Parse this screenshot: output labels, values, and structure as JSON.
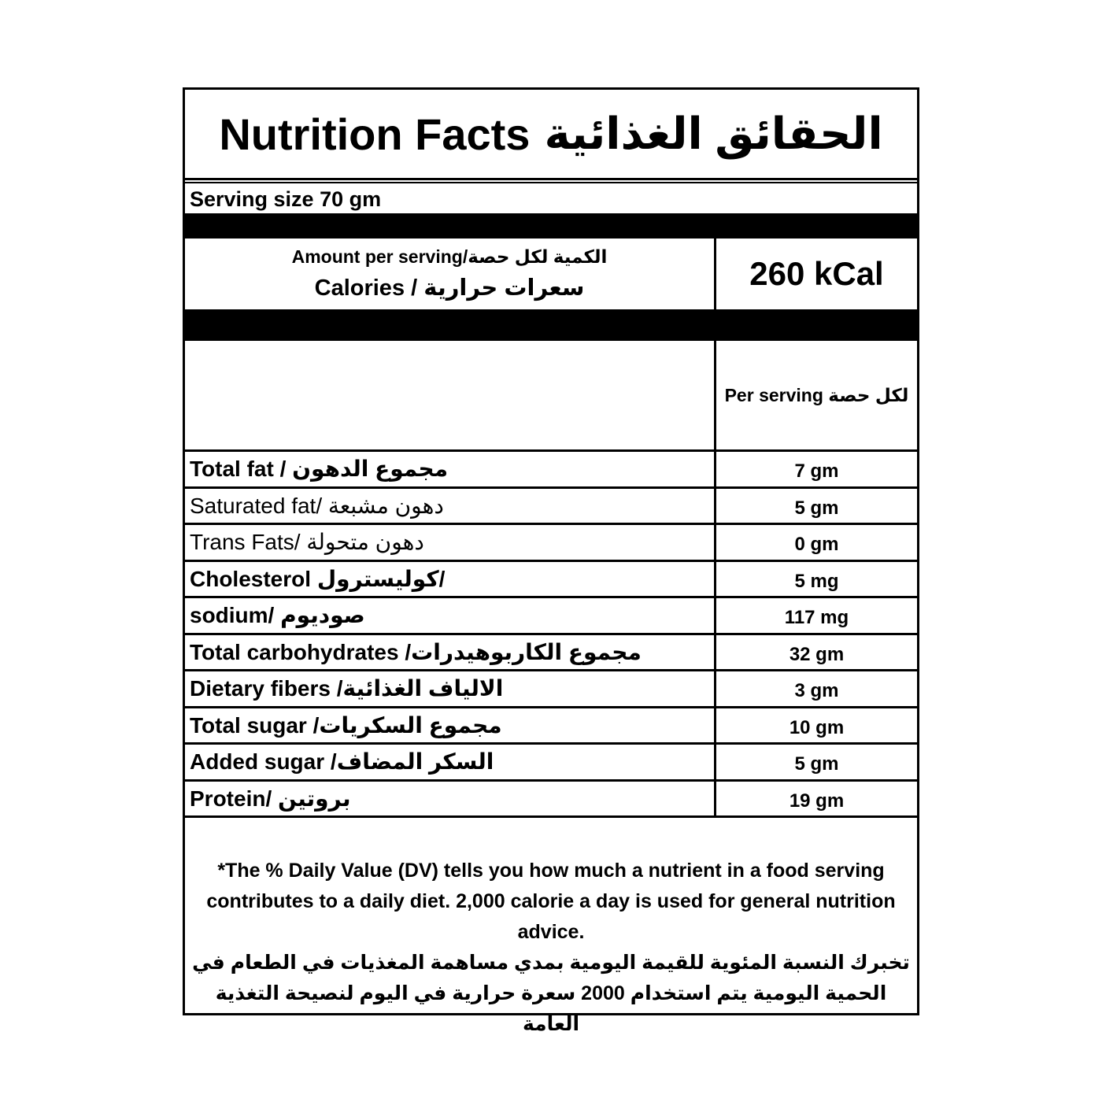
{
  "title": {
    "en": "Nutrition Facts",
    "ar": "الحقائق الغذائية"
  },
  "serving_size": "Serving size 70 gm",
  "amount": {
    "line1": "Amount per serving/الكمية لكل حصة",
    "line2": "Calories  /  سعرات حرارية",
    "calories_value": "260 kCal"
  },
  "per_serving_header": "Per serving لكل حصة",
  "nutrients": [
    {
      "label": "Total fat / مجموع الدهون",
      "value": "7 gm",
      "bold": true
    },
    {
      "label": "Saturated fat/ دهون مشبعة",
      "value": "5 gm",
      "bold": false
    },
    {
      "label": "Trans Fats/ دهون متحولة",
      "value": "0 gm",
      "bold": false
    },
    {
      "label": "Cholesterol كوليسترول/",
      "value": "5 mg",
      "bold": true
    },
    {
      "label": "sodium/ صوديوم",
      "value": "117 mg",
      "bold": true
    },
    {
      "label": "Total carbohydrates /مجموع الكاربوهيدرات",
      "value": "32 gm",
      "bold": true
    },
    {
      "label": "Dietary fibers /الالياف الغذائية",
      "value": "3  gm",
      "bold": true
    },
    {
      "label": "Total sugar /مجموع السكريات",
      "value": "10 gm",
      "bold": true
    },
    {
      "label": "Added sugar /السكر المضاف",
      "value": "5 gm",
      "bold": true
    },
    {
      "label": "Protein/ بروتين",
      "value": "19 gm",
      "bold": true
    }
  ],
  "footer": {
    "en": "*The % Daily Value (DV) tells you how much a nutrient in a food serving contributes to a daily diet. 2,000 calorie a day is used for general nutrition advice.",
    "ar": "تخبرك النسبة المئوية للقيمة اليومية بمدي مساهمة المغذيات في الطعام في الحمية اليومية يتم استخدام 2000 سعرة حرارية في اليوم لنصيحة التغذية العامة"
  }
}
